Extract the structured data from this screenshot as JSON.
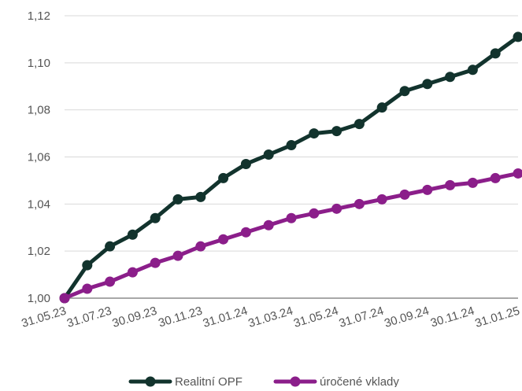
{
  "chart_data": {
    "type": "line",
    "title": "",
    "xlabel": "",
    "ylabel": "",
    "ylim": [
      1.0,
      1.12
    ],
    "yticks": [
      "1,00",
      "1,02",
      "1,04",
      "1,06",
      "1,08",
      "1,10",
      "1,12"
    ],
    "ytick_values": [
      1.0,
      1.02,
      1.04,
      1.06,
      1.08,
      1.1,
      1.12
    ],
    "grid": true,
    "legend": "bottom",
    "x": [
      "31.05.23",
      "30.06.23",
      "31.07.23",
      "31.08.23",
      "30.09.23",
      "31.10.23",
      "30.11.23",
      "31.12.23",
      "31.01.24",
      "29.02.24",
      "31.03.24",
      "30.04.24",
      "31.05.24",
      "30.06.24",
      "31.07.24",
      "31.08.24",
      "30.09.24",
      "31.10.24",
      "30.11.24",
      "31.12.24",
      "31.01.25"
    ],
    "xtick_labels": [
      "31.05.23",
      "31.07.23",
      "30.09.23",
      "30.11.23",
      "31.01.24",
      "31.03.24",
      "31.05.24",
      "31.07.24",
      "30.09.24",
      "30.11.24",
      "31.01.25"
    ],
    "series": [
      {
        "name": "Realitní OPF",
        "color": "#12332d",
        "values": [
          1.0,
          1.014,
          1.022,
          1.027,
          1.034,
          1.042,
          1.043,
          1.051,
          1.057,
          1.061,
          1.065,
          1.07,
          1.071,
          1.074,
          1.081,
          1.088,
          1.091,
          1.094,
          1.097,
          1.104,
          1.111
        ]
      },
      {
        "name": "úročené vklady",
        "color": "#8b1e8a",
        "values": [
          1.0,
          1.004,
          1.007,
          1.011,
          1.015,
          1.018,
          1.022,
          1.025,
          1.028,
          1.031,
          1.034,
          1.036,
          1.038,
          1.04,
          1.042,
          1.044,
          1.046,
          1.048,
          1.049,
          1.051,
          1.053
        ]
      }
    ]
  }
}
